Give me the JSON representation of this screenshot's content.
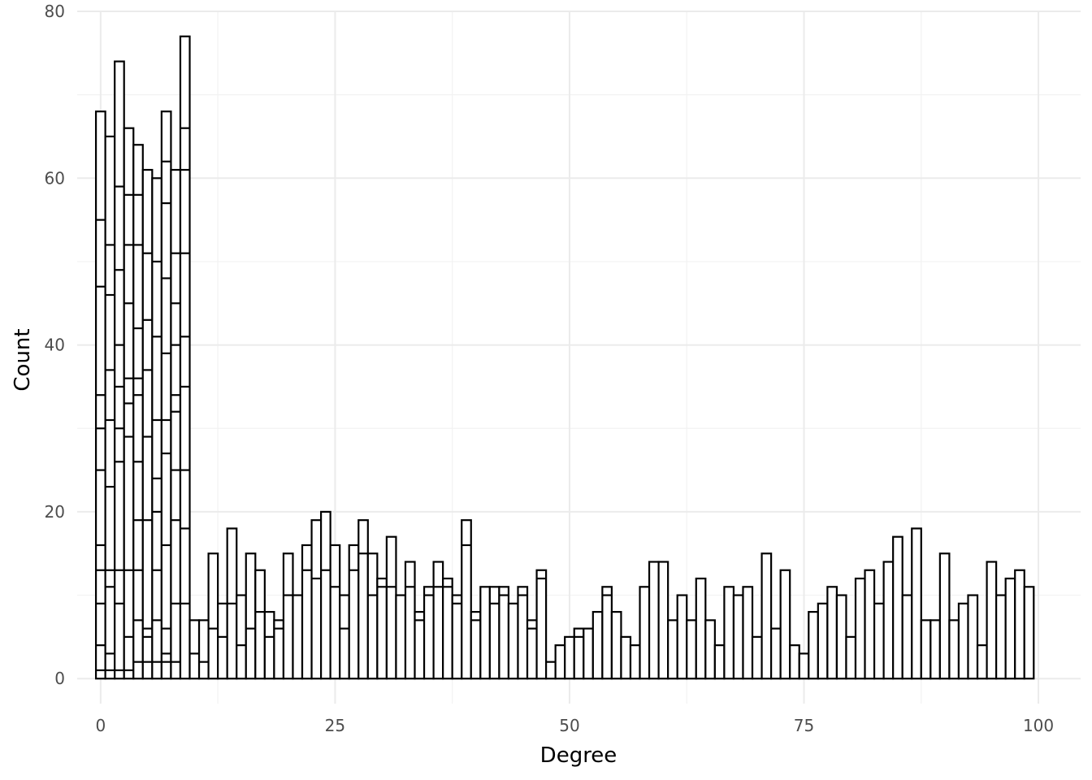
{
  "chart_data": {
    "type": "bar",
    "subtype": "histogram",
    "xlabel": "Degree",
    "ylabel": "Count",
    "xlim": [
      -2.5,
      104.5
    ],
    "ylim": [
      -3,
      80
    ],
    "x_ticks": [
      0,
      25,
      50,
      75,
      100
    ],
    "y_ticks": [
      0,
      20,
      40,
      60,
      80
    ],
    "grid": true,
    "legend": "none",
    "bar_fill": "#ffffff",
    "bar_outline": "#000000",
    "series": [
      {
        "x": [
          0,
          1,
          2,
          3,
          4,
          5,
          6,
          7,
          8,
          9
        ],
        "values": [
          68,
          65,
          74,
          66,
          64,
          61,
          60,
          68,
          61,
          77
        ],
        "segment_boundaries": [
          [
            1,
            4,
            9,
            13,
            16,
            25,
            30,
            34,
            47,
            55
          ],
          [
            1,
            3,
            11,
            13,
            23,
            31,
            37,
            46,
            52
          ],
          [
            1,
            9,
            13,
            26,
            30,
            35,
            40,
            49,
            59
          ],
          [
            1,
            5,
            13,
            29,
            33,
            36,
            45,
            52,
            58
          ],
          [
            2,
            7,
            13,
            19,
            26,
            34,
            36,
            42,
            52,
            58
          ],
          [
            2,
            5,
            6,
            19,
            29,
            37,
            43,
            51
          ],
          [
            2,
            7,
            13,
            20,
            24,
            31,
            41,
            50
          ],
          [
            2,
            3,
            6,
            16,
            27,
            31,
            39,
            48,
            57,
            62
          ],
          [
            2,
            9,
            19,
            25,
            32,
            34,
            40,
            45,
            51
          ],
          [
            9,
            18,
            25,
            35,
            41,
            51,
            61,
            66
          ]
        ]
      },
      {
        "x": [
          10,
          11,
          12,
          13,
          14,
          15,
          16,
          17,
          18,
          19,
          20,
          21,
          22,
          23,
          24,
          25,
          26,
          27,
          28,
          29,
          30,
          31,
          32,
          33,
          34,
          35,
          36,
          37,
          38,
          39,
          40,
          41,
          42,
          43,
          44,
          45,
          46,
          47,
          48,
          49,
          50,
          51,
          52,
          53,
          54,
          55,
          56,
          57,
          58,
          59,
          60,
          61,
          62,
          63,
          64,
          65,
          66,
          67,
          68,
          69,
          70,
          71,
          72,
          73,
          74,
          75,
          76,
          77,
          78,
          79,
          80,
          81,
          82,
          83,
          84,
          85,
          86,
          87,
          88,
          89,
          90,
          91,
          92,
          93,
          94,
          95,
          96,
          97,
          98,
          99
        ],
        "values": [
          7,
          7,
          15,
          9,
          18,
          10,
          15,
          13,
          8,
          7,
          15,
          10,
          16,
          19,
          20,
          16,
          10,
          16,
          19,
          15,
          12,
          17,
          10,
          14,
          8,
          11,
          14,
          12,
          10,
          19,
          8,
          11,
          11,
          11,
          9,
          11,
          7,
          13,
          2,
          4,
          5,
          6,
          6,
          8,
          11,
          8,
          5,
          4,
          11,
          14,
          14,
          7,
          10,
          7,
          12,
          7,
          4,
          11,
          10,
          11,
          5,
          15,
          6,
          13,
          4,
          3,
          8,
          9,
          11,
          10,
          5,
          12,
          13,
          9,
          14,
          17,
          10,
          18,
          7,
          7,
          15,
          7,
          9,
          10,
          4,
          14,
          10,
          12,
          13,
          11
        ],
        "inner_marks": {
          "10": [
            3
          ],
          "11": [
            2
          ],
          "12": [
            6
          ],
          "13": [
            5
          ],
          "14": [
            9
          ],
          "15": [
            4
          ],
          "16": [
            6
          ],
          "17": [
            8
          ],
          "18": [
            5
          ],
          "19": [
            6
          ],
          "20": [
            10
          ],
          "22": [
            13
          ],
          "23": [
            12
          ],
          "24": [
            13
          ],
          "25": [
            11
          ],
          "26": [
            6
          ],
          "27": [
            13
          ],
          "28": [
            15
          ],
          "29": [
            10
          ],
          "30": [
            11
          ],
          "31": [
            11
          ],
          "33": [
            11
          ],
          "34": [
            7
          ],
          "35": [
            10
          ],
          "36": [
            11
          ],
          "37": [
            11
          ],
          "38": [
            9
          ],
          "39": [
            16
          ],
          "40": [
            7
          ],
          "42": [
            9
          ],
          "43": [
            10
          ],
          "45": [
            10
          ],
          "46": [
            6
          ],
          "47": [
            12
          ],
          "51": [
            5
          ],
          "54": [
            10
          ]
        }
      }
    ]
  }
}
